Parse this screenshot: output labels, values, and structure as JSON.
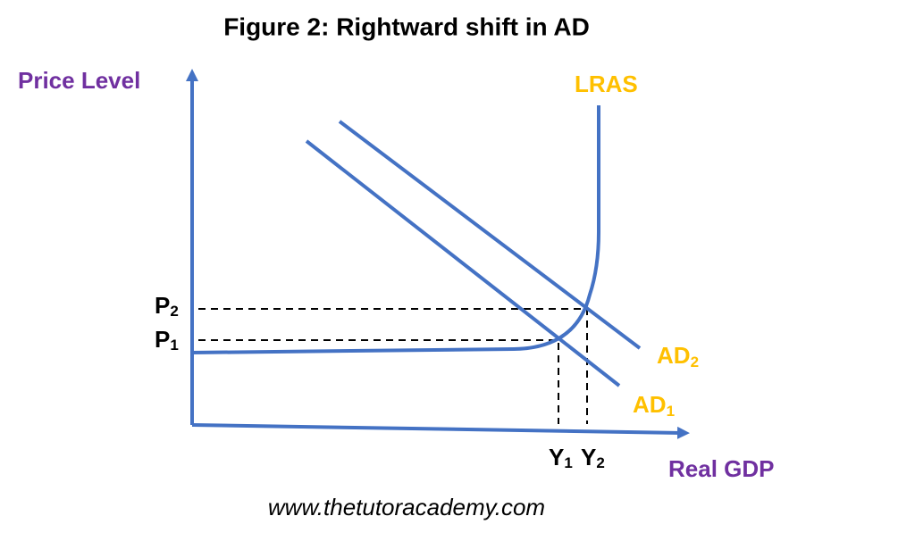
{
  "title": "Figure 2: Rightward shift in AD",
  "axes": {
    "y_label": "Price Level",
    "x_label": "Real GDP"
  },
  "curves": {
    "lras": {
      "label": "LRAS"
    },
    "ad1": {
      "label": "AD",
      "sub": "1"
    },
    "ad2": {
      "label": "AD",
      "sub": "2"
    }
  },
  "prices": [
    {
      "label": "P",
      "sub": "1"
    },
    {
      "label": "P",
      "sub": "2"
    }
  ],
  "outputs": [
    {
      "label": "Y",
      "sub": "1"
    },
    {
      "label": "Y",
      "sub": "2"
    }
  ],
  "footer": "www.thetutoracademy.com"
}
